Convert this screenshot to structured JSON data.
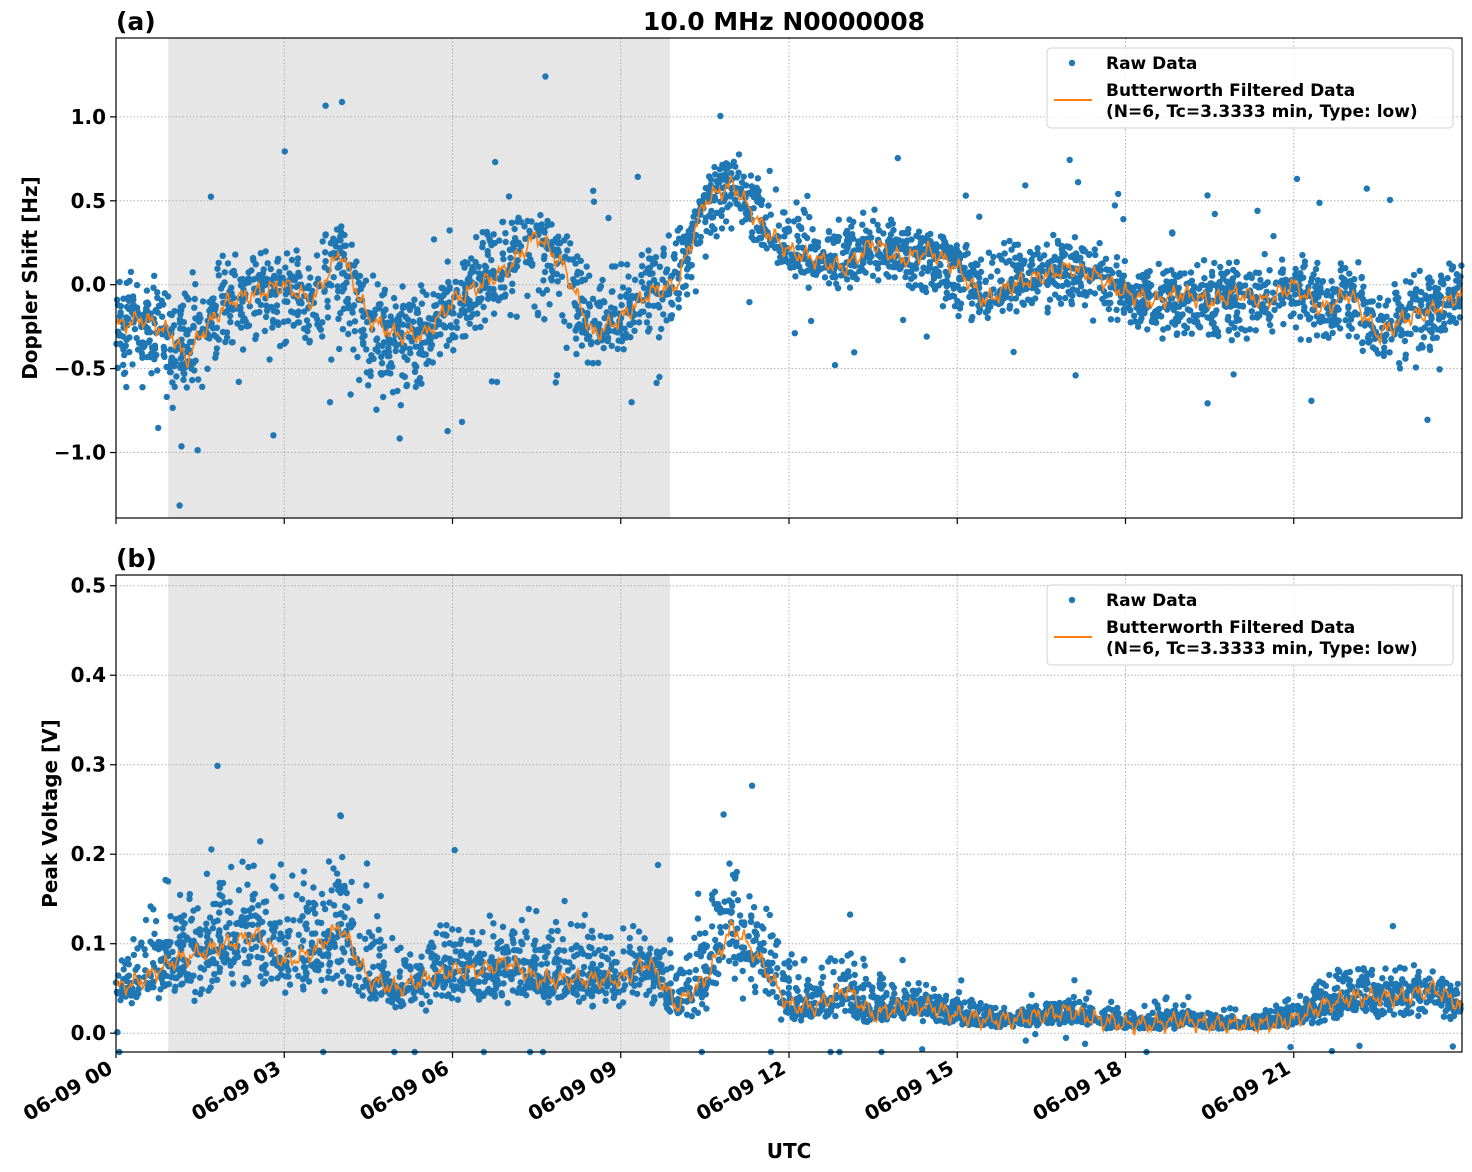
{
  "title": "10.0 MHz N0000008",
  "colors": {
    "raw": "#1f77b4",
    "filtered": "#ff7f0e",
    "shade": "#e6e6e6",
    "grid": "#b0b0b0"
  },
  "legend": {
    "raw": "Raw Data",
    "filtered_line1": "Butterworth Filtered Data",
    "filtered_line2": "(N=6, Tc=3.3333 min, Type: low)",
    "placement": "top-right"
  },
  "xlabel": "UTC",
  "chart_data": [
    {
      "type": "scatter+line",
      "panel_label": "(a)",
      "ylabel": "Doppler Shift [Hz]",
      "xlim_hours": [
        0,
        24
      ],
      "ylim": [
        -1.39,
        1.47
      ],
      "grid": true,
      "shaded_span_hours": [
        0.93,
        9.88
      ],
      "yticks": [
        -1.0,
        -0.5,
        0.0,
        0.5,
        1.0
      ],
      "ytick_labels": [
        "−1.0",
        "−0.5",
        "0.0",
        "0.5",
        "1.0"
      ],
      "xticks_hours": [
        0,
        3,
        6,
        9,
        12,
        15,
        18,
        21
      ],
      "xtick_labels": [
        "06-09 00",
        "06-09 03",
        "06-09 06",
        "06-09 09",
        "06-09 12",
        "06-09 15",
        "06-09 18",
        "06-09 21"
      ],
      "filtered": {
        "x_hours": [
          0,
          0.5,
          1,
          1.25,
          1.5,
          2,
          2.5,
          3,
          3.5,
          4,
          4.5,
          5,
          5.5,
          6,
          6.5,
          7,
          7.5,
          8,
          8.5,
          9,
          9.5,
          10,
          10.5,
          11,
          11.5,
          12,
          12.5,
          13,
          13.5,
          14,
          14.5,
          15,
          15.5,
          16,
          16.5,
          17,
          17.5,
          18,
          18.5,
          19,
          19.5,
          20,
          20.5,
          21,
          21.5,
          22,
          22.5,
          23,
          23.5,
          24
        ],
        "y": [
          -0.25,
          -0.2,
          -0.3,
          -0.45,
          -0.3,
          -0.1,
          -0.05,
          0.0,
          -0.1,
          0.2,
          -0.2,
          -0.3,
          -0.3,
          -0.1,
          0.0,
          0.1,
          0.3,
          0.1,
          -0.3,
          -0.2,
          -0.05,
          0.0,
          0.5,
          0.6,
          0.35,
          0.2,
          0.15,
          0.1,
          0.25,
          0.15,
          0.2,
          0.1,
          -0.1,
          0.0,
          0.05,
          0.1,
          0.05,
          -0.05,
          -0.1,
          -0.05,
          -0.1,
          -0.05,
          -0.1,
          0.0,
          -0.15,
          -0.05,
          -0.3,
          -0.2,
          -0.15,
          -0.05
        ]
      },
      "raw_envelope": {
        "x_hours": [
          0,
          1,
          2,
          3,
          4,
          5,
          6,
          7,
          8,
          9,
          10,
          11,
          12,
          13,
          14,
          15,
          16,
          17,
          18,
          19,
          20,
          21,
          22,
          23,
          24
        ],
        "low": [
          -0.6,
          -0.85,
          -0.5,
          -0.6,
          -0.6,
          -0.9,
          -0.5,
          -0.2,
          -0.6,
          -0.5,
          -0.4,
          0.3,
          0.0,
          -0.1,
          -0.05,
          -0.3,
          -0.2,
          -0.2,
          -0.35,
          -0.4,
          -0.4,
          -0.35,
          -0.5,
          -0.65,
          -0.3
        ],
        "high": [
          0.1,
          0.1,
          0.25,
          0.3,
          0.4,
          0.05,
          0.2,
          0.6,
          0.4,
          0.2,
          0.4,
          0.9,
          0.6,
          0.5,
          0.5,
          0.3,
          0.35,
          0.4,
          0.25,
          0.2,
          0.2,
          0.25,
          0.2,
          0.15,
          0.2
        ]
      }
    },
    {
      "type": "scatter+line",
      "panel_label": "(b)",
      "ylabel": "Peak Voltage [V]",
      "xlim_hours": [
        0,
        24
      ],
      "ylim": [
        -0.021,
        0.512
      ],
      "grid": true,
      "shaded_span_hours": [
        0.93,
        9.88
      ],
      "yticks": [
        0.0,
        0.1,
        0.2,
        0.3,
        0.4,
        0.5
      ],
      "ytick_labels": [
        "0.0",
        "0.1",
        "0.2",
        "0.3",
        "0.4",
        "0.5"
      ],
      "xticks_hours": [
        0,
        3,
        6,
        9,
        12,
        15,
        18,
        21
      ],
      "xtick_labels": [
        "06-09 00",
        "06-09 03",
        "06-09 06",
        "06-09 09",
        "06-09 12",
        "06-09 15",
        "06-09 18",
        "06-09 21"
      ],
      "filtered": {
        "x_hours": [
          0,
          0.5,
          1,
          1.5,
          2,
          2.5,
          3,
          3.5,
          4,
          4.5,
          5,
          5.5,
          6,
          6.5,
          7,
          7.5,
          8,
          8.5,
          9,
          9.5,
          10,
          10.5,
          11,
          11.5,
          12,
          12.5,
          13,
          13.5,
          14,
          14.5,
          15,
          15.5,
          16,
          16.5,
          17,
          17.5,
          18,
          18.5,
          19,
          19.5,
          20,
          20.5,
          21,
          21.5,
          22,
          22.5,
          23,
          23.5,
          24
        ],
        "y": [
          0.05,
          0.06,
          0.08,
          0.09,
          0.1,
          0.11,
          0.08,
          0.09,
          0.12,
          0.06,
          0.05,
          0.06,
          0.07,
          0.07,
          0.08,
          0.06,
          0.06,
          0.06,
          0.06,
          0.08,
          0.03,
          0.06,
          0.12,
          0.08,
          0.03,
          0.03,
          0.05,
          0.02,
          0.03,
          0.03,
          0.02,
          0.015,
          0.015,
          0.02,
          0.025,
          0.015,
          0.01,
          0.01,
          0.015,
          0.01,
          0.01,
          0.01,
          0.015,
          0.03,
          0.04,
          0.04,
          0.04,
          0.05,
          0.03
        ]
      },
      "raw_envelope": {
        "x_hours": [
          0,
          1,
          2,
          3,
          4,
          5,
          6,
          7,
          8,
          9,
          10,
          11,
          12,
          13,
          14,
          15,
          16,
          17,
          18,
          19,
          20,
          21,
          22,
          23,
          24
        ],
        "low": [
          0.02,
          0.03,
          0.03,
          0.03,
          0.03,
          0.02,
          0.02,
          0.02,
          0.02,
          0.02,
          0.01,
          0.02,
          0.01,
          0.01,
          0.01,
          0.005,
          0.005,
          0.005,
          0.003,
          0.003,
          0.003,
          0.005,
          0.01,
          0.01,
          0.01
        ],
        "high": [
          0.1,
          0.2,
          0.22,
          0.2,
          0.3,
          0.12,
          0.16,
          0.17,
          0.15,
          0.14,
          0.12,
          0.25,
          0.1,
          0.12,
          0.07,
          0.05,
          0.03,
          0.05,
          0.03,
          0.04,
          0.02,
          0.05,
          0.1,
          0.1,
          0.06
        ]
      }
    }
  ]
}
